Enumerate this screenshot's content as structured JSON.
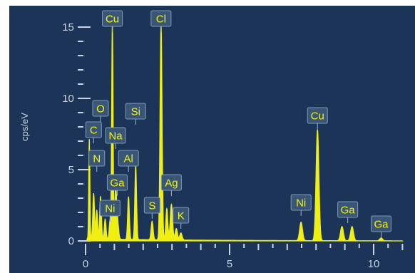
{
  "chart_data": {
    "type": "line",
    "title": "",
    "xlabel": "",
    "ylabel": "cps/eV",
    "xlim": [
      -0.2,
      11.0
    ],
    "ylim": [
      0,
      16
    ],
    "x_ticks": [
      {
        "value": 0,
        "label": "0"
      },
      {
        "value": 5,
        "label": "5"
      },
      {
        "value": 10,
        "label": "10"
      }
    ],
    "y_ticks": [
      {
        "value": 0,
        "label": "0"
      },
      {
        "value": 5,
        "label": "5"
      },
      {
        "value": 10,
        "label": "10"
      },
      {
        "value": 15,
        "label": "15"
      }
    ],
    "grid": false,
    "colors": {
      "background": "#1c3457",
      "spectrum": "#f0ef14",
      "axis": "#c9d3e2",
      "label_text": "#f2f11a"
    },
    "series": [
      {
        "peaks": [
          {
            "x": 0.13,
            "h": 7.0,
            "w": 0.02
          },
          {
            "x": 0.28,
            "h": 3.2,
            "w": 0.03
          },
          {
            "x": 0.39,
            "h": 2.0,
            "w": 0.03
          },
          {
            "x": 0.52,
            "h": 3.0,
            "w": 0.03
          },
          {
            "x": 0.68,
            "h": 1.4,
            "w": 0.03
          },
          {
            "x": 0.85,
            "h": 1.3,
            "w": 0.03
          },
          {
            "x": 0.93,
            "h": 15.2,
            "w": 0.025
          },
          {
            "x": 1.04,
            "h": 3.3,
            "w": 0.03
          },
          {
            "x": 1.1,
            "h": 1.5,
            "w": 0.04
          },
          {
            "x": 1.49,
            "h": 3.0,
            "w": 0.03
          },
          {
            "x": 1.74,
            "h": 5.2,
            "w": 0.03
          },
          {
            "x": 2.31,
            "h": 1.3,
            "w": 0.035
          },
          {
            "x": 2.62,
            "h": 15.3,
            "w": 0.035
          },
          {
            "x": 2.82,
            "h": 2.2,
            "w": 0.035
          },
          {
            "x": 2.98,
            "h": 2.5,
            "w": 0.04
          },
          {
            "x": 3.15,
            "h": 0.8,
            "w": 0.04
          },
          {
            "x": 3.31,
            "h": 0.5,
            "w": 0.04
          },
          {
            "x": 7.48,
            "h": 1.3,
            "w": 0.05
          },
          {
            "x": 8.05,
            "h": 7.8,
            "w": 0.05
          },
          {
            "x": 8.9,
            "h": 1.0,
            "w": 0.05
          },
          {
            "x": 9.25,
            "h": 1.0,
            "w": 0.05
          },
          {
            "x": 10.26,
            "h": 0.2,
            "w": 0.05
          }
        ],
        "baseline": 0.15
      }
    ],
    "annotations": [
      {
        "text": "Cu",
        "x": 0.93,
        "y": 15.6
      },
      {
        "text": "Cl",
        "x": 2.62,
        "y": 15.6
      },
      {
        "text": "O",
        "x": 0.52,
        "y": 9.3
      },
      {
        "text": "Si",
        "x": 1.74,
        "y": 9.1
      },
      {
        "text": "C",
        "x": 0.28,
        "y": 7.8
      },
      {
        "text": "Na",
        "x": 1.04,
        "y": 7.4
      },
      {
        "text": "N",
        "x": 0.39,
        "y": 5.8
      },
      {
        "text": "Al",
        "x": 1.49,
        "y": 5.8
      },
      {
        "text": "Ag",
        "x": 2.98,
        "y": 4.1
      },
      {
        "text": "Ga",
        "x": 1.1,
        "y": 4.1
      },
      {
        "text": "Ni",
        "x": 0.85,
        "y": 2.3
      },
      {
        "text": "S",
        "x": 2.31,
        "y": 2.5
      },
      {
        "text": "K",
        "x": 3.31,
        "y": 1.8
      },
      {
        "text": "Cu",
        "x": 8.05,
        "y": 8.8
      },
      {
        "text": "Ni",
        "x": 7.48,
        "y": 2.7
      },
      {
        "text": "Ga",
        "x": 9.1,
        "y": 2.2
      },
      {
        "text": "Ga",
        "x": 10.26,
        "y": 1.2
      }
    ]
  }
}
